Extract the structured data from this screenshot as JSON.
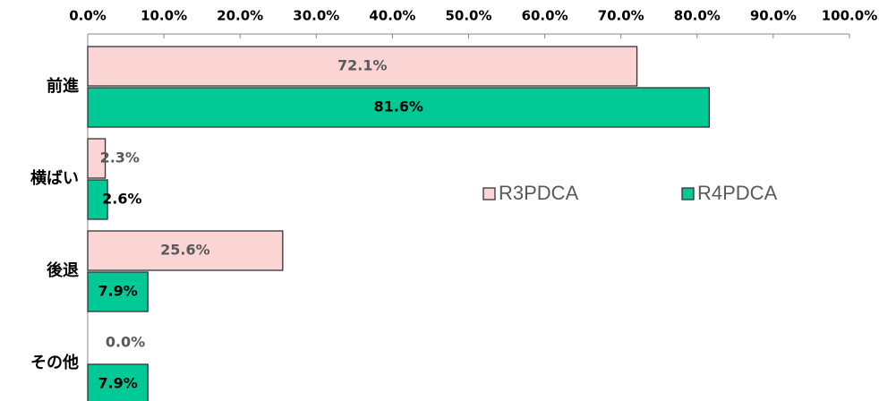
{
  "chart_data": {
    "type": "bar",
    "orientation": "horizontal",
    "categories": [
      "前進",
      "横ばい",
      "後退",
      "その他"
    ],
    "series": [
      {
        "name": "R3PDCA",
        "color": "#fbd4d4",
        "values": [
          72.1,
          2.3,
          25.6,
          0.0
        ],
        "value_labels": [
          "72.1%",
          "2.3%",
          "25.6%",
          "0.0%"
        ]
      },
      {
        "name": "R4PDCA",
        "color": "#00c996",
        "values": [
          81.6,
          2.6,
          7.9,
          7.9
        ],
        "value_labels": [
          "81.6%",
          "2.6%",
          "7.9%",
          "7.9%"
        ]
      }
    ],
    "xlim": [
      0,
      100
    ],
    "xticks": [
      {
        "value": 0,
        "label": "0.0%"
      },
      {
        "value": 10,
        "label": "10.0%"
      },
      {
        "value": 20,
        "label": "20.0%"
      },
      {
        "value": 30,
        "label": "30.0%"
      },
      {
        "value": 40,
        "label": "40.0%"
      },
      {
        "value": 50,
        "label": "50.0%"
      },
      {
        "value": 60,
        "label": "60.0%"
      },
      {
        "value": 70,
        "label": "70.0%"
      },
      {
        "value": 80,
        "label": "80.0%"
      },
      {
        "value": 90,
        "label": "90.0%"
      },
      {
        "value": 100,
        "label": "100.0%"
      }
    ],
    "legend": "center-right",
    "grid": false
  }
}
